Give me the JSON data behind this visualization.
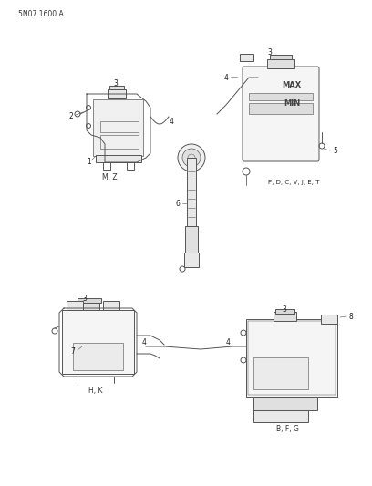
{
  "title": "5N07 1600 A",
  "bg_color": "#ffffff",
  "line_color": "#555555",
  "label_color": "#333333",
  "fig_width": 4.08,
  "fig_height": 5.33,
  "dpi": 100,
  "callouts": {
    "top_left": {
      "labels": [
        "1",
        "2",
        "3",
        "4"
      ],
      "caption": "M, Z"
    },
    "top_right": {
      "labels": [
        "3",
        "4",
        "5"
      ],
      "caption": "P, D, C, V, J, E, T"
    },
    "center": {
      "labels": [
        "6"
      ],
      "caption": ""
    },
    "bottom_left": {
      "labels": [
        "3",
        "4",
        "7"
      ],
      "caption": "H, K"
    },
    "bottom_right": {
      "labels": [
        "3",
        "4",
        "8"
      ],
      "caption": "B, F, G"
    }
  },
  "max_text": "MAX",
  "min_text": "MIN"
}
